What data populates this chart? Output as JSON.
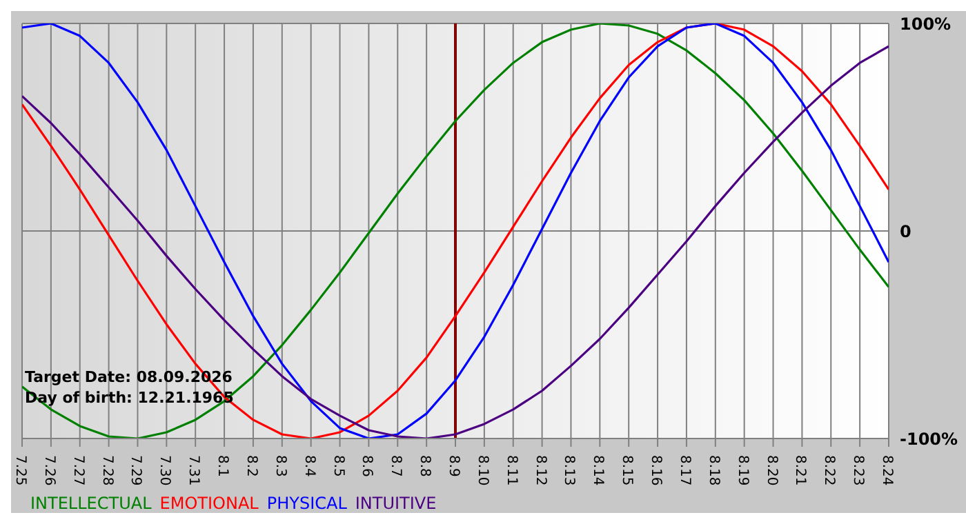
{
  "chart_data": {
    "type": "line",
    "categories": [
      "7.25",
      "7.26",
      "7.27",
      "7.28",
      "7.29",
      "7.30",
      "7.31",
      "8.1",
      "8.2",
      "8.3",
      "8.4",
      "8.5",
      "8.6",
      "8.7",
      "8.8",
      "8.9",
      "8.10",
      "8.11",
      "8.12",
      "8.13",
      "8.14",
      "8.15",
      "8.16",
      "8.17",
      "8.18",
      "8.19",
      "8.20",
      "8.21",
      "8.22",
      "8.23",
      "8.24"
    ],
    "series": [
      {
        "name": "INTELLECTUAL",
        "color": "#008000",
        "values": [
          -75,
          -86,
          -94,
          -99,
          -100,
          -97,
          -91,
          -82,
          -70,
          -55,
          -38,
          -20,
          -1,
          18,
          36,
          53,
          68,
          81,
          91,
          97,
          100,
          99,
          95,
          87,
          76,
          63,
          47,
          29,
          10,
          -9,
          -27
        ]
      },
      {
        "name": "EMOTIONAL",
        "color": "#ff0000",
        "values": [
          61,
          41,
          20,
          -2,
          -24,
          -45,
          -64,
          -80,
          -91,
          -98,
          -100,
          -97,
          -89,
          -77,
          -61,
          -41,
          -20,
          2,
          24,
          45,
          64,
          80,
          91,
          98,
          100,
          97,
          89,
          77,
          61,
          41,
          20
        ]
      },
      {
        "name": "PHYSICAL",
        "color": "#0000ff",
        "values": [
          98,
          100,
          94,
          81,
          62,
          39,
          12,
          -15,
          -41,
          -64,
          -82,
          -95,
          -100,
          -98,
          -88,
          -72,
          -51,
          -26,
          1,
          28,
          53,
          74,
          89,
          98,
          100,
          94,
          81,
          62,
          39,
          12,
          -15
        ]
      },
      {
        "name": "INTUITIVE",
        "color": "#4b0082",
        "values": [
          65,
          52,
          37,
          21,
          5,
          -12,
          -28,
          -43,
          -57,
          -70,
          -81,
          -89,
          -96,
          -99,
          -100,
          -98,
          -93,
          -86,
          -77,
          -65,
          -52,
          -37,
          -21,
          -5,
          12,
          28,
          43,
          57,
          70,
          81,
          89
        ]
      }
    ],
    "ylim": [
      -100,
      100
    ],
    "yticks": [
      {
        "value": 100,
        "label": "100%"
      },
      0,
      {
        "value": -100,
        "label": "-100%"
      }
    ],
    "ref_lines": [
      {
        "axis": "x",
        "value": "8.9",
        "color": "#800000"
      }
    ],
    "annotations": [
      "Target Date: 08.09.2026",
      "Day of birth: 12.21.1965"
    ],
    "grid": true,
    "legend": "bottom",
    "marker": "none",
    "line_style": "solid"
  }
}
